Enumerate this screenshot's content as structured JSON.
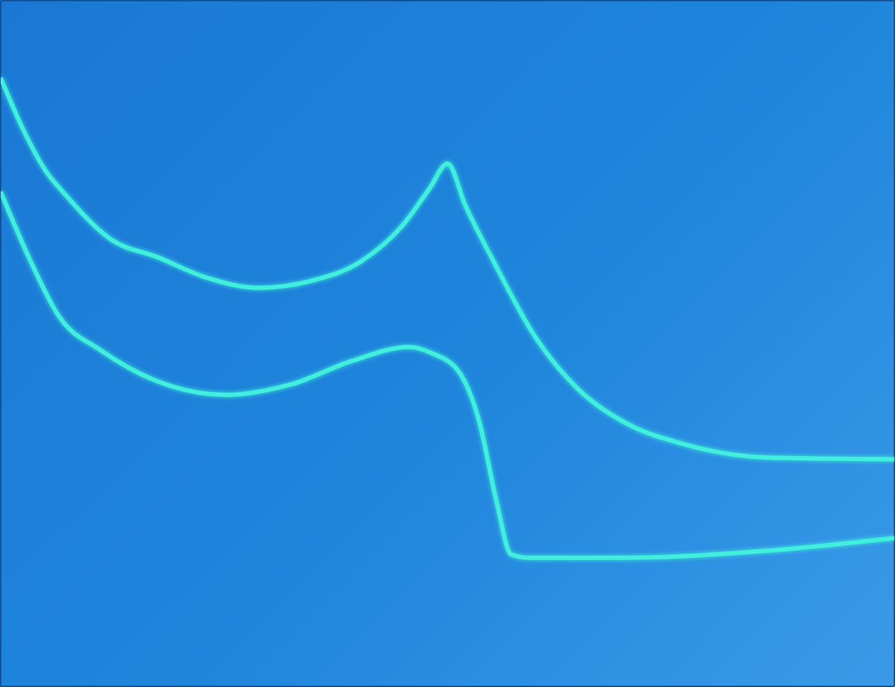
{
  "chart_data": {
    "type": "line",
    "xlim": [
      -5,
      5
    ],
    "xticks": [
      -5,
      -4,
      -3,
      -2,
      -1,
      0,
      1,
      2,
      3,
      4,
      5
    ],
    "ylim": [
      -4,
      4
    ],
    "yticks": [
      -4,
      -3,
      -2,
      -1,
      0,
      1,
      2,
      3,
      4
    ],
    "grid": true,
    "tick_labels": false,
    "series": [
      {
        "color": "#40f0dc",
        "x": [
          -5.0,
          -4.75,
          -4.5,
          -4.27,
          -3.76,
          -3.25,
          -2.7,
          -2.12,
          -1.53,
          -0.98,
          -0.51,
          -0.2,
          0.0,
          0.2,
          0.51,
          0.98,
          1.45,
          2.0,
          2.63,
          3.57,
          5.0
        ],
        "values": [
          3.1,
          2.5,
          2.02,
          1.73,
          1.21,
          1.01,
          0.77,
          0.65,
          0.73,
          0.95,
          1.37,
          1.81,
          2.1,
          1.61,
          0.97,
          0.08,
          -0.52,
          -0.93,
          -1.17,
          -1.33,
          -1.35
        ]
      },
      {
        "color": "#40f0dc",
        "x": [
          -5.0,
          -4.67,
          -4.35,
          -3.88,
          -3.25,
          -2.47,
          -1.76,
          -1.06,
          -0.43,
          -0.16,
          0.12,
          0.35,
          0.55,
          0.71,
          0.9,
          2.0,
          3.57,
          5.0
        ],
        "values": [
          1.77,
          0.97,
          0.32,
          -0.08,
          -0.44,
          -0.6,
          -0.48,
          -0.2,
          -0.04,
          -0.12,
          -0.32,
          -0.89,
          -1.85,
          -2.46,
          -2.5,
          -2.5,
          -2.42,
          -2.27
        ]
      }
    ]
  }
}
